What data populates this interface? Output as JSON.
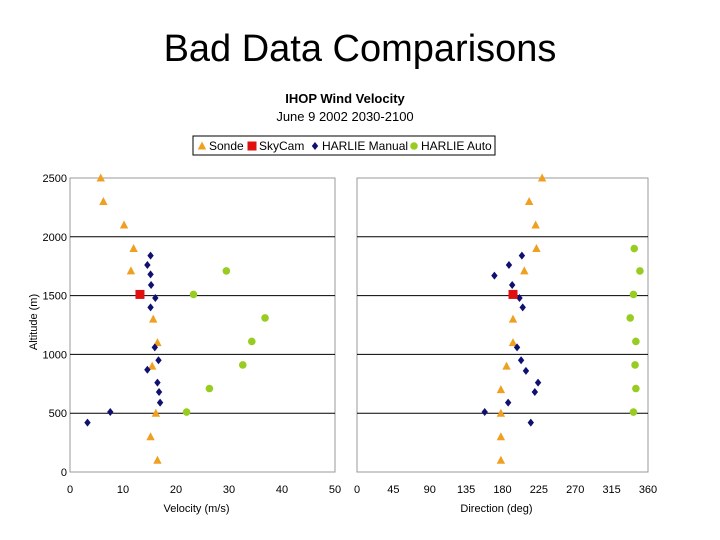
{
  "slide": {
    "title": "Bad Data Comparisons"
  },
  "chart_data": {
    "type": "scatter",
    "title": "IHOP Wind Velocity",
    "subtitle": "June 9 2002   2030-2100",
    "ylabel": "Altitude (m)",
    "ylim": [
      0,
      2500
    ],
    "yticks": [
      0,
      500,
      1000,
      1500,
      2000,
      2500
    ],
    "legend": [
      {
        "name": "Sonde",
        "marker": "triangle",
        "color": "#F0A020"
      },
      {
        "name": "SkyCam",
        "marker": "square",
        "color": "#E01010"
      },
      {
        "name": "HARLIE Manual",
        "marker": "diamond",
        "color": "#101070"
      },
      {
        "name": "HARLIE Auto",
        "marker": "circle",
        "color": "#99CC22"
      }
    ],
    "panels": [
      {
        "name": "velocity",
        "xlabel": "Velocity (m/s)",
        "xlim": [
          0,
          50
        ],
        "xticks": [
          0,
          10,
          20,
          30,
          40,
          50
        ],
        "series": {
          "Sonde": [
            [
              5.8,
              2500
            ],
            [
              6.3,
              2300
            ],
            [
              10.2,
              2100
            ],
            [
              12,
              1900
            ],
            [
              11.5,
              1710
            ],
            [
              15.7,
              1300
            ],
            [
              16.5,
              1100
            ],
            [
              15.5,
              900
            ],
            [
              16.2,
              500
            ],
            [
              15.2,
              300
            ],
            [
              16.5,
              100
            ]
          ],
          "SkyCam": [
            [
              13.2,
              1510
            ]
          ],
          "HARLIE Manual": [
            [
              15.2,
              1840
            ],
            [
              14.6,
              1760
            ],
            [
              15.2,
              1680
            ],
            [
              15.3,
              1590
            ],
            [
              16.1,
              1480
            ],
            [
              15.2,
              1400
            ],
            [
              16,
              1060
            ],
            [
              16.7,
              950
            ],
            [
              14.6,
              870
            ],
            [
              16.5,
              760
            ],
            [
              16.8,
              680
            ],
            [
              17,
              590
            ],
            [
              7.6,
              510
            ],
            [
              3.3,
              420
            ]
          ],
          "HARLIE Auto": [
            [
              29.5,
              1710
            ],
            [
              23.3,
              1510
            ],
            [
              36.8,
              1310
            ],
            [
              34.3,
              1110
            ],
            [
              32.6,
              910
            ],
            [
              26.3,
              710
            ],
            [
              22,
              510
            ]
          ]
        }
      },
      {
        "name": "direction",
        "xlabel": "Direction (deg)",
        "xlim": [
          0,
          360
        ],
        "xticks": [
          0,
          45,
          90,
          135,
          180,
          225,
          270,
          315,
          360
        ],
        "series": {
          "Sonde": [
            [
              229,
              2500
            ],
            [
              213,
              2300
            ],
            [
              221,
              2100
            ],
            [
              222,
              1900
            ],
            [
              207,
              1710
            ],
            [
              193,
              1300
            ],
            [
              193,
              1100
            ],
            [
              185,
              900
            ],
            [
              178,
              700
            ],
            [
              178,
              500
            ],
            [
              178,
              300
            ],
            [
              178,
              100
            ]
          ],
          "SkyCam": [
            [
              193,
              1510
            ]
          ],
          "HARLIE Manual": [
            [
              204,
              1840
            ],
            [
              188,
              1760
            ],
            [
              170,
              1670
            ],
            [
              192,
              1590
            ],
            [
              201,
              1480
            ],
            [
              205,
              1400
            ],
            [
              198,
              1060
            ],
            [
              203,
              950
            ],
            [
              209,
              860
            ],
            [
              224,
              760
            ],
            [
              220,
              680
            ],
            [
              187,
              590
            ],
            [
              158,
              510
            ],
            [
              215,
              420
            ]
          ],
          "HARLIE Auto": [
            [
              343,
              1900
            ],
            [
              350,
              1710
            ],
            [
              342,
              1510
            ],
            [
              338,
              1310
            ],
            [
              345,
              1110
            ],
            [
              344,
              910
            ],
            [
              345,
              710
            ],
            [
              342,
              510
            ]
          ]
        }
      }
    ]
  }
}
